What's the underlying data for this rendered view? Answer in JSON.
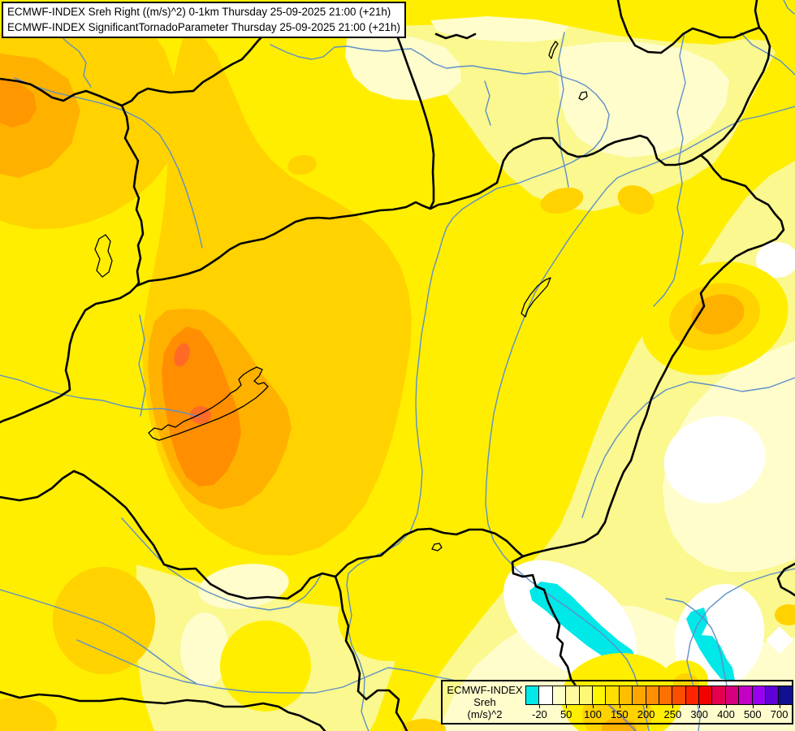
{
  "title_box": {
    "line1": "ECMWF-INDEX Sreh Right ((m/s)^2) 0-1km Thursday 25-09-2025 21:00 (+21h)",
    "line2": "ECMWF-INDEX SignificantTornadoParameter Thursday 25-09-2025 21:00 (+21h)"
  },
  "legend": {
    "title": "ECMWF-INDEX",
    "parameter": "Sreh",
    "units": "(m/s)^2",
    "swatches": [
      "#00E8E8",
      "#FFFFFF",
      "#FFFFC8",
      "#FFFA9E",
      "#FFF876",
      "#FFF500",
      "#FFDE00",
      "#FFBE00",
      "#FFA600",
      "#FF8E00",
      "#FF7000",
      "#FF4D00",
      "#FF2400",
      "#F50000",
      "#E4004E",
      "#D6007E",
      "#C400C4",
      "#9900F0",
      "#5F00D8",
      "#10108F"
    ],
    "ticks": [
      {
        "label": "-20",
        "boundary": 1
      },
      {
        "label": "50",
        "boundary": 3
      },
      {
        "label": "100",
        "boundary": 5
      },
      {
        "label": "150",
        "boundary": 7
      },
      {
        "label": "200",
        "boundary": 9
      },
      {
        "label": "250",
        "boundary": 11
      },
      {
        "label": "300",
        "boundary": 13
      },
      {
        "label": "400",
        "boundary": 15
      },
      {
        "label": "500",
        "boundary": 17
      },
      {
        "label": "700",
        "boundary": 19
      }
    ]
  },
  "map": {
    "palette": {
      "base_yellow": "#FFEE00",
      "light_yellow": "#FAF88E",
      "cream": "#FFFDCC",
      "white": "#FFFFFF",
      "cyan": "#00E8E8",
      "gold": "#FFD200",
      "orange": "#FFB100",
      "deep_orange": "#FF8E00",
      "red_orange": "#FF6B26",
      "corner_orange": "#FF9800",
      "river_blue": "#5E8FC7",
      "border_black": "#000000",
      "border_gray": "#8C8C8C"
    }
  }
}
